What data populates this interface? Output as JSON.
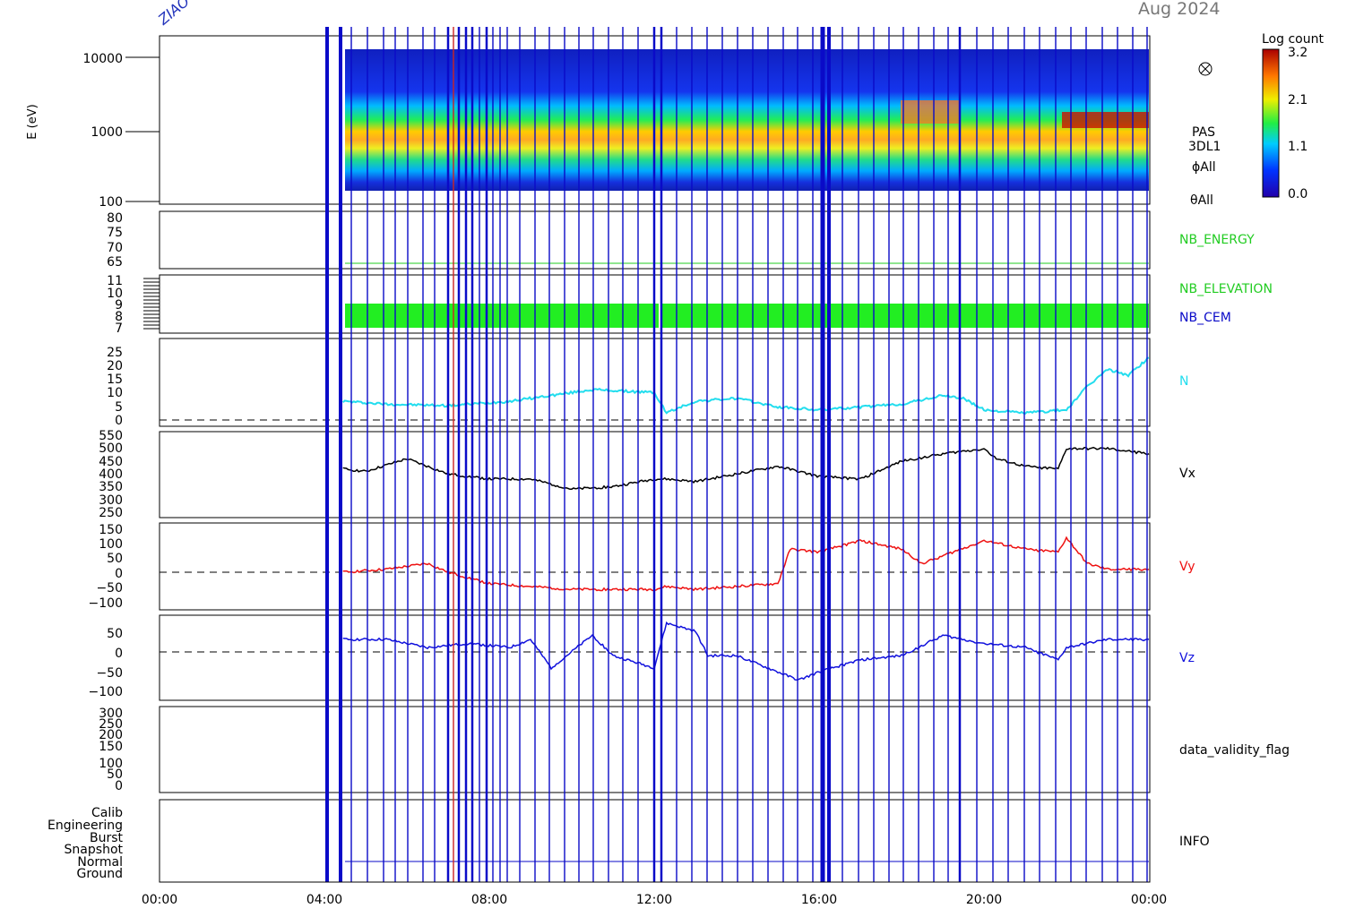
{
  "header": {
    "date": "Aug 2024",
    "ztag": "ZIAO"
  },
  "colorbar": {
    "title": "Log count",
    "ticks": [
      "3.2",
      "2.1",
      "1.1",
      "0.0"
    ]
  },
  "colors": {
    "frame": "#000000",
    "event_lines": "#0a0ac8",
    "n": "#22ddee",
    "vx": "#000000",
    "vy": "#ee1111",
    "vz": "#1111dd",
    "nb_energy": "#22cc22",
    "nb_cem": "#0a0ac8",
    "bars": "#22ee22"
  },
  "chart_data": {
    "type": "line",
    "x_ticks": [
      "00:00",
      "04:00",
      "08:00",
      "12:00",
      "16:00",
      "20:00",
      "00:00"
    ],
    "x_range_hours": [
      0,
      24
    ],
    "data_start_hour": 4.45,
    "panels": [
      {
        "id": "spectrogram",
        "type": "heatmap",
        "ylabel": "E (eV)",
        "scale": "log",
        "ylim": [
          100,
          16000
        ],
        "yticks": [
          "10000",
          "1000",
          "100"
        ],
        "right_labels": [
          "PAS",
          "3DL1",
          "ϕAll",
          "θAll"
        ],
        "peak_energy_eV_by_hour": [
          [
            4.5,
            1100
          ],
          [
            8,
            1150
          ],
          [
            12,
            1100
          ],
          [
            16,
            1050
          ],
          [
            18,
            1400
          ],
          [
            20,
            1500
          ],
          [
            22,
            1250
          ],
          [
            24,
            1200
          ]
        ]
      },
      {
        "id": "nb_energy",
        "yticks": [
          "80",
          "75",
          "70",
          "65"
        ],
        "ylim": [
          62,
          82
        ],
        "value": 63,
        "right_labels": [
          "NB_ENERGY"
        ]
      },
      {
        "id": "nb_elevation_cem",
        "yticks": [
          "11",
          "10",
          "9",
          "8",
          "7"
        ],
        "ylim": [
          6.5,
          11.5
        ],
        "band": [
          7,
          9
        ],
        "right_labels": [
          "NB_ELEVATION",
          "NB_CEM"
        ]
      },
      {
        "id": "n",
        "yticks": [
          "25",
          "20",
          "15",
          "10",
          "5",
          "0"
        ],
        "ylim": [
          -1,
          28
        ],
        "zero_line": true,
        "right_labels": [
          "N"
        ],
        "series": {
          "name": "N",
          "points": [
            [
              4.45,
              7
            ],
            [
              5.5,
              6
            ],
            [
              7,
              5.5
            ],
            [
              8.5,
              7
            ],
            [
              9.5,
              9
            ],
            [
              10.5,
              11
            ],
            [
              12,
              10
            ],
            [
              12.3,
              3
            ],
            [
              13,
              7
            ],
            [
              14,
              8
            ],
            [
              15,
              5
            ],
            [
              16,
              4
            ],
            [
              17,
              5
            ],
            [
              18,
              6
            ],
            [
              19,
              9
            ],
            [
              19.5,
              8
            ],
            [
              20,
              4
            ],
            [
              21,
              3
            ],
            [
              22,
              4
            ],
            [
              22.5,
              12
            ],
            [
              23,
              18
            ],
            [
              23.5,
              16
            ],
            [
              24,
              22
            ]
          ]
        }
      },
      {
        "id": "vx",
        "yticks": [
          "550",
          "500",
          "450",
          "400",
          "350",
          "300",
          "250"
        ],
        "ylim": [
          235,
          560
        ],
        "right_labels": [
          "Vx"
        ],
        "series": {
          "name": "Vx",
          "points": [
            [
              4.45,
              420
            ],
            [
              5,
              410
            ],
            [
              6,
              460
            ],
            [
              7,
              400
            ],
            [
              8,
              380
            ],
            [
              9,
              380
            ],
            [
              10,
              340
            ],
            [
              11,
              350
            ],
            [
              12,
              380
            ],
            [
              12.3,
              380
            ],
            [
              13,
              370
            ],
            [
              14,
              400
            ],
            [
              15,
              430
            ],
            [
              16,
              390
            ],
            [
              17,
              380
            ],
            [
              18,
              450
            ],
            [
              19,
              480
            ],
            [
              20,
              500
            ],
            [
              20.3,
              460
            ],
            [
              21,
              430
            ],
            [
              21.8,
              420
            ],
            [
              22,
              500
            ],
            [
              23,
              500
            ],
            [
              24,
              480
            ]
          ]
        }
      },
      {
        "id": "vy",
        "yticks": [
          "150",
          "100",
          "50",
          "0",
          "−50",
          "−100"
        ],
        "ylim": [
          -125,
          165
        ],
        "zero_line": true,
        "right_labels": [
          "Vy"
        ],
        "series": {
          "name": "Vy",
          "points": [
            [
              4.45,
              0
            ],
            [
              5.5,
              10
            ],
            [
              6.5,
              30
            ],
            [
              7,
              0
            ],
            [
              8,
              -40
            ],
            [
              9,
              -50
            ],
            [
              10,
              -60
            ],
            [
              11,
              -60
            ],
            [
              12,
              -60
            ],
            [
              12.3,
              -50
            ],
            [
              13,
              -60
            ],
            [
              14,
              -50
            ],
            [
              15,
              -40
            ],
            [
              15.3,
              80
            ],
            [
              16,
              70
            ],
            [
              16.5,
              90
            ],
            [
              17,
              110
            ],
            [
              18,
              80
            ],
            [
              18.5,
              30
            ],
            [
              20,
              110
            ],
            [
              21,
              80
            ],
            [
              21.8,
              70
            ],
            [
              22,
              120
            ],
            [
              22.5,
              30
            ],
            [
              23,
              10
            ],
            [
              24,
              10
            ]
          ]
        }
      },
      {
        "id": "vz",
        "yticks": [
          "50",
          "0",
          "−50",
          "−100"
        ],
        "ylim": [
          -125,
          75
        ],
        "zero_line": true,
        "right_labels": [
          "Vz"
        ],
        "series": {
          "name": "Vz",
          "points": [
            [
              4.45,
              20
            ],
            [
              5.5,
              20
            ],
            [
              6.5,
              0
            ],
            [
              7.5,
              10
            ],
            [
              8.5,
              0
            ],
            [
              9,
              20
            ],
            [
              9.5,
              -50
            ],
            [
              10.5,
              30
            ],
            [
              11,
              -20
            ],
            [
              12,
              -50
            ],
            [
              12.3,
              60
            ],
            [
              13,
              40
            ],
            [
              13.3,
              -20
            ],
            [
              14,
              -20
            ],
            [
              15,
              -60
            ],
            [
              15.5,
              -80
            ],
            [
              16,
              -60
            ],
            [
              17,
              -30
            ],
            [
              18,
              -20
            ],
            [
              19,
              30
            ],
            [
              20,
              10
            ],
            [
              21,
              0
            ],
            [
              21.8,
              -30
            ],
            [
              22,
              0
            ],
            [
              23,
              20
            ],
            [
              24,
              20
            ]
          ]
        }
      },
      {
        "id": "data_validity_flag",
        "yticks": [
          "300",
          "250",
          "200",
          "150",
          "100",
          "50",
          "0"
        ],
        "ylim": [
          -20,
          320
        ],
        "right_labels": [
          "data_validity_flag"
        ]
      },
      {
        "id": "info",
        "yticks": [
          "Calib",
          "Engineering",
          "Burst",
          "Snapshot",
          "Normal",
          "Ground"
        ],
        "right_labels": [
          "INFO"
        ],
        "mode": "Normal"
      }
    ]
  }
}
